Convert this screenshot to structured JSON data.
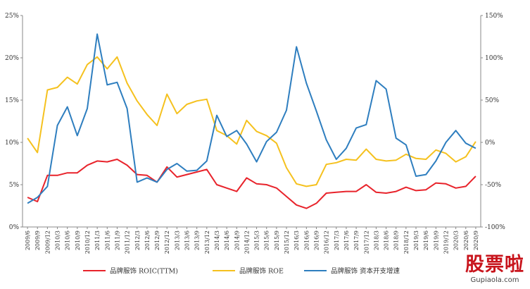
{
  "chart_data": {
    "type": "line",
    "categories": [
      "2009/6",
      "2009/9",
      "2009/12",
      "2010/3",
      "2010/6",
      "2010/9",
      "2010/12",
      "2011/3",
      "2011/6",
      "2011/9",
      "2011/12",
      "2012/3",
      "2012/6",
      "2012/9",
      "2012/12",
      "2013/3",
      "2013/6",
      "2013/9",
      "2013/12",
      "2014/3",
      "2014/6",
      "2014/9",
      "2014/12",
      "2015/3",
      "2015/6",
      "2015/9",
      "2015/12",
      "2016/3",
      "2016/6",
      "2016/9",
      "2016/12",
      "2017/3",
      "2017/6",
      "2017/9",
      "2017/12",
      "2018/3",
      "2018/6",
      "2018/9",
      "2018/12",
      "2019/3",
      "2019/6",
      "2019/9",
      "2019/12",
      "2020/3",
      "2020/6",
      "2020/9"
    ],
    "y_left": {
      "range": [
        0,
        25
      ],
      "ticks": [
        "0%",
        "5%",
        "10%",
        "15%",
        "20%",
        "25%"
      ]
    },
    "y_right": {
      "range": [
        -100,
        150
      ],
      "ticks": [
        "-100%",
        "-50%",
        "0%",
        "50%",
        "100%",
        "150%"
      ]
    },
    "series": [
      {
        "name": "品牌服饰 ROIC(TTM)",
        "axis": "left",
        "color": "#e8232b",
        "values": [
          3.5,
          3.0,
          6.1,
          6.1,
          6.4,
          6.4,
          7.3,
          7.8,
          7.7,
          8.0,
          7.3,
          6.2,
          6.1,
          5.3,
          7.1,
          5.9,
          6.2,
          6.5,
          6.8,
          5.0,
          4.6,
          4.2,
          5.8,
          5.1,
          5.0,
          4.6,
          3.6,
          2.6,
          2.2,
          2.8,
          4.0,
          4.1,
          4.2,
          4.2,
          5.0,
          4.1,
          4.0,
          4.2,
          4.7,
          4.3,
          4.4,
          5.2,
          5.1,
          4.6,
          4.8,
          6.0
        ]
      },
      {
        "name": "品牌服饰 ROE",
        "axis": "left",
        "color": "#f5c11e",
        "values": [
          10.5,
          8.8,
          16.2,
          16.5,
          17.7,
          16.9,
          19.2,
          20.1,
          18.7,
          20.1,
          17.0,
          14.9,
          13.3,
          12.0,
          15.7,
          13.4,
          14.5,
          14.9,
          15.1,
          11.4,
          10.8,
          9.8,
          12.6,
          11.3,
          10.8,
          9.9,
          7.0,
          5.1,
          4.8,
          5.0,
          7.4,
          7.6,
          8.0,
          7.9,
          9.2,
          8.0,
          7.8,
          7.9,
          8.6,
          8.1,
          8.0,
          9.1,
          8.7,
          7.7,
          8.3,
          10.1
        ]
      },
      {
        "name": "品牌服饰 资本开支增速",
        "axis": "right",
        "color": "#2e7ebf",
        "values": [
          -72,
          -65,
          -52,
          20,
          42,
          8,
          40,
          128,
          68,
          71,
          40,
          -47,
          -42,
          -47,
          -32,
          -25,
          -34,
          -33,
          -22,
          32,
          7,
          14,
          -2,
          -23,
          1,
          12,
          38,
          113,
          70,
          37,
          3,
          -20,
          -7,
          17,
          21,
          73,
          63,
          5,
          -3,
          -40,
          -38,
          -22,
          0,
          14,
          -1,
          -7
        ]
      }
    ]
  }
}
